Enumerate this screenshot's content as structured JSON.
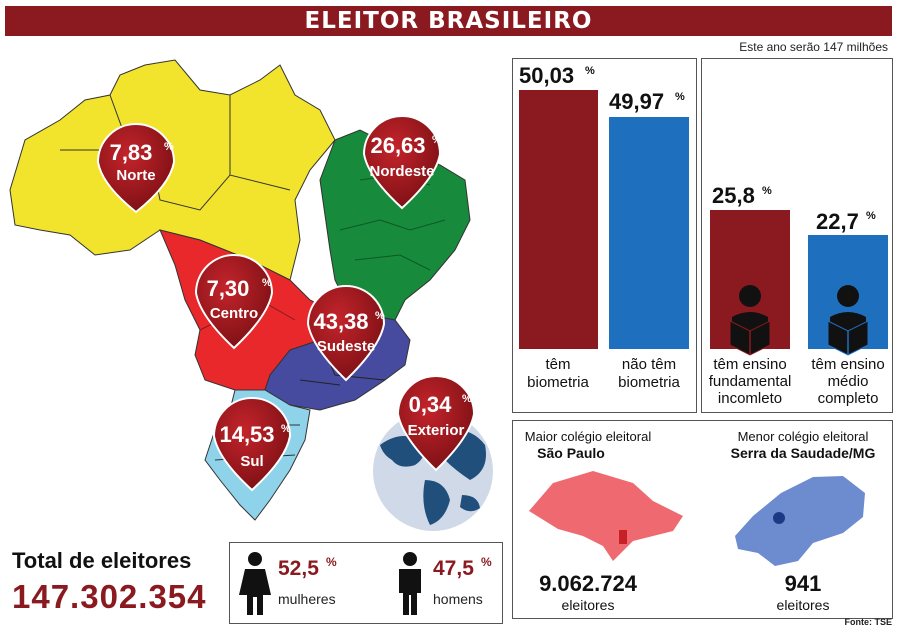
{
  "title": "ELEITOR BRASILEIRO",
  "subnote": "Este ano serão 147 milhões",
  "colors": {
    "dark_red": "#8a1a1f",
    "blue": "#1f6fbf",
    "north": "#f2e42c",
    "northeast": "#178a3b",
    "center": "#e8282b",
    "southeast": "#464ba0",
    "south": "#8fd3ea"
  },
  "map": {
    "regions": [
      {
        "pct": "7,83",
        "name": "Norte"
      },
      {
        "pct": "26,63",
        "name": "Nordeste"
      },
      {
        "pct": "7,30",
        "name": "Centro"
      },
      {
        "pct": "43,38",
        "name": "Sudeste"
      },
      {
        "pct": "14,53",
        "name": "Sul"
      },
      {
        "pct": "0,34",
        "name": "Exterior"
      }
    ],
    "percent_sign": "%"
  },
  "chart_data": [
    {
      "type": "bar",
      "categories": [
        "têm biometria",
        "não têm biometria"
      ],
      "values": [
        50.03,
        49.97
      ],
      "value_labels": [
        "50,03%",
        "49,97%"
      ]
    },
    {
      "type": "bar",
      "categories": [
        "têm ensino fundamental incomleto",
        "têm ensino médio completo"
      ],
      "values": [
        25.8,
        22.7
      ],
      "value_labels": [
        "25,8%",
        "22,7%"
      ]
    }
  ],
  "biometria": {
    "bars": [
      {
        "num": "50,03",
        "sign": "%",
        "label1": "têm",
        "label2": "biometria"
      },
      {
        "num": "49,97",
        "sign": "%",
        "label1": "não têm",
        "label2": "biometria"
      }
    ]
  },
  "ensino": {
    "bars": [
      {
        "num": "25,8",
        "sign": "%",
        "label1": "têm ensino",
        "label2": "fundamental",
        "label3": "incomleto"
      },
      {
        "num": "22,7",
        "sign": "%",
        "label1": "têm ensino",
        "label2": "médio",
        "label3": "completo"
      }
    ]
  },
  "colegios": {
    "maior": {
      "heading": "Maior colégio eleitoral",
      "place": "São Paulo",
      "count": "9.062.724",
      "unit": "eleitores"
    },
    "menor": {
      "heading": "Menor colégio eleitoral",
      "place": "Serra da Saudade/MG",
      "count": "941",
      "unit": "eleitores"
    }
  },
  "total": {
    "label": "Total de eleitores",
    "value": "147.302.354"
  },
  "gender": {
    "women": {
      "pct": "52,5",
      "sign": "%",
      "label": "mulheres"
    },
    "men": {
      "pct": "47,5",
      "sign": "%",
      "label": "homens"
    }
  },
  "fonte": "Fonte: TSE"
}
